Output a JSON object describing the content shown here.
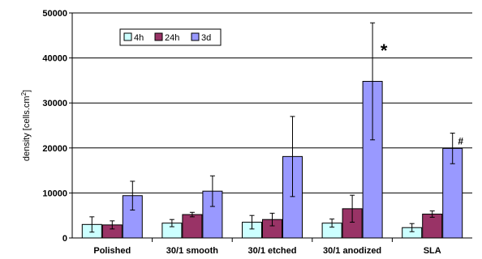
{
  "chart_data": {
    "type": "bar",
    "categories": [
      "Polished",
      "30/1 smooth",
      "30/1 etched",
      "30/1 anodized",
      "SLA"
    ],
    "ylabel": {
      "main": "density [cells.cm",
      "sup": "2",
      "end": "]"
    },
    "ylim": [
      0,
      50000
    ],
    "yticks": [
      0,
      10000,
      20000,
      30000,
      40000,
      50000
    ],
    "grid": true,
    "legend_position": "top-left",
    "series": [
      {
        "name": "4h",
        "color": "#ccffff",
        "values": [
          3000,
          3300,
          3500,
          3300,
          2300
        ],
        "errors": [
          1700,
          800,
          1500,
          900,
          900
        ]
      },
      {
        "name": "24h",
        "color": "#993366",
        "values": [
          2900,
          5200,
          4100,
          6500,
          5300
        ],
        "errors": [
          900,
          500,
          1400,
          3000,
          700
        ]
      },
      {
        "name": "3d",
        "color": "#9999ff",
        "values": [
          9400,
          10400,
          18100,
          34800,
          19900
        ],
        "errors": [
          3200,
          3400,
          8900,
          13000,
          3400
        ]
      }
    ],
    "annotations": [
      {
        "text": "*",
        "category_index": 3,
        "series_index": 2
      },
      {
        "text": "#",
        "category_index": 4,
        "series_index": 2
      }
    ]
  }
}
